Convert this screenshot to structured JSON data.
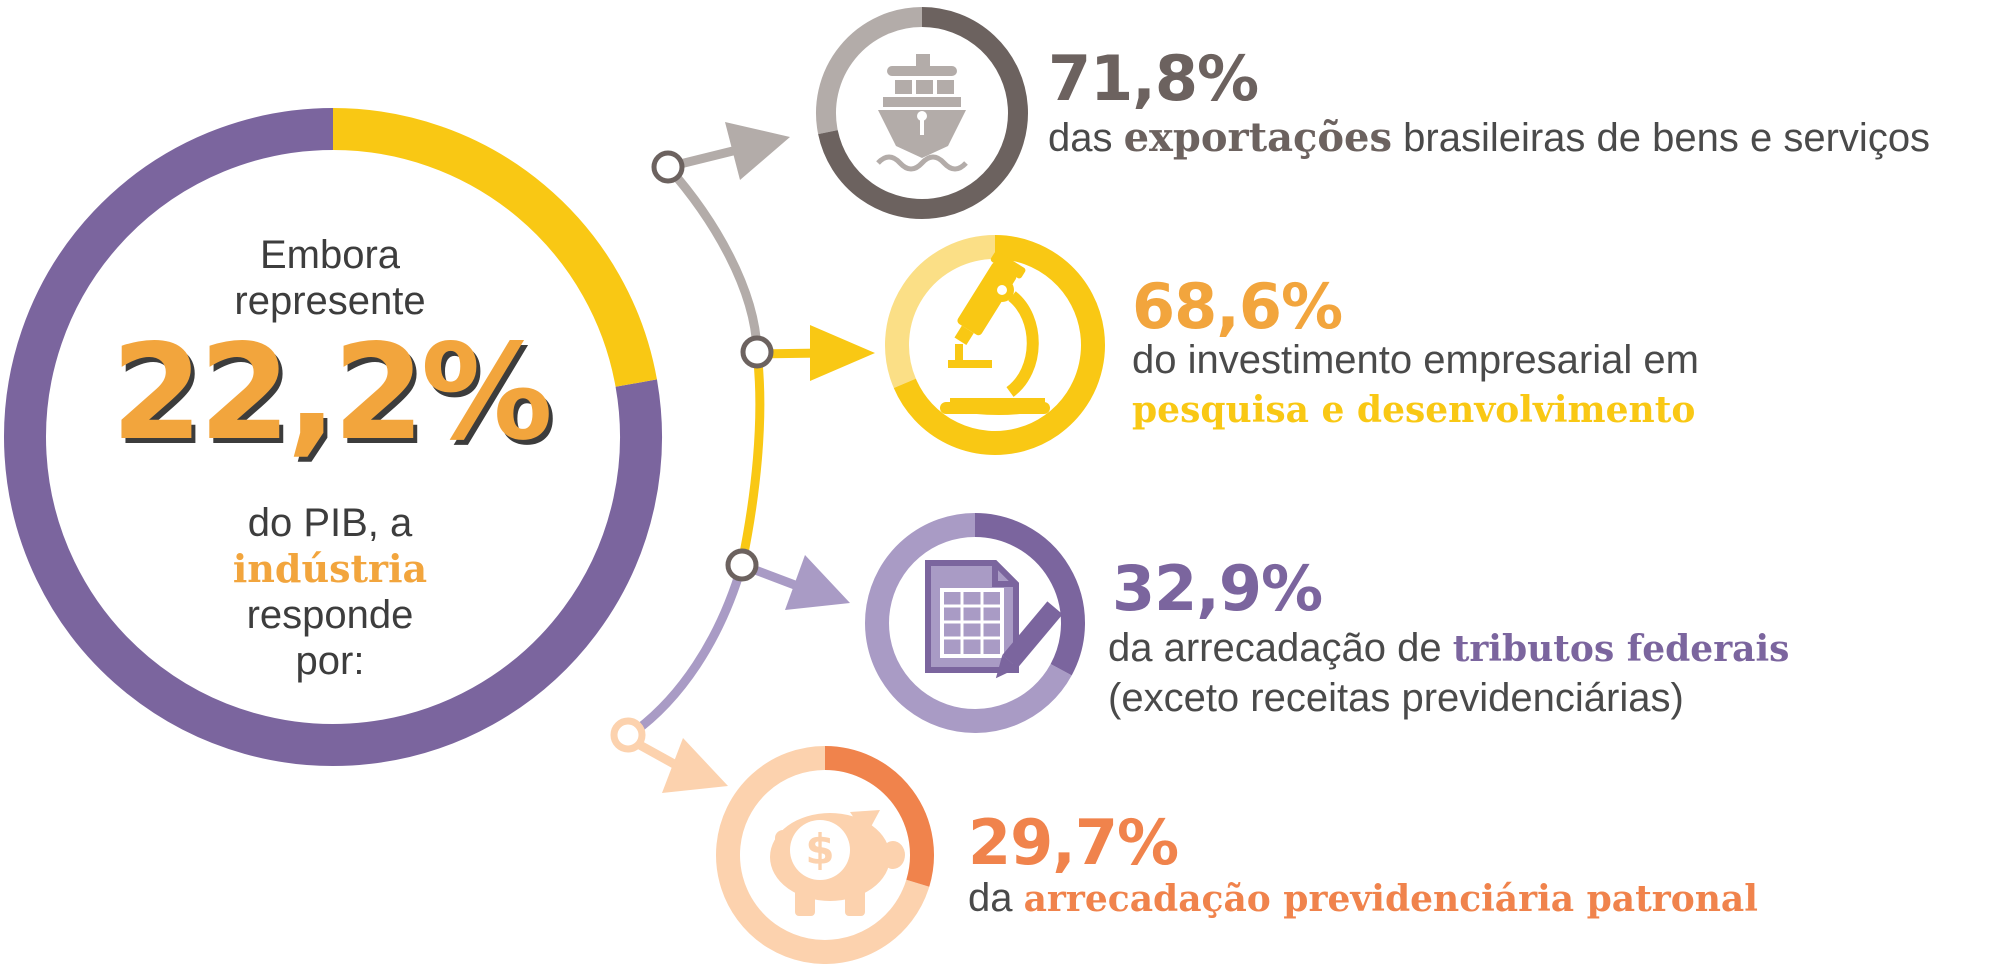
{
  "colors": {
    "purple": "#7b659e",
    "purple_light": "#a99bc5",
    "yellow": "#f9c814",
    "yellow_light": "#fbdf86",
    "gray_dark": "#6c625f",
    "gray_light": "#b3aca9",
    "orange": "#f0834c",
    "orange_light": "#fcd2ae",
    "gold": "#f2a53d"
  },
  "center": {
    "line1": "Embora",
    "line2": "represente",
    "value": "22,2%",
    "line3": "do PIB, a",
    "highlight": "indústria",
    "line4": "responde",
    "line5": "por:"
  },
  "chart_data": {
    "type": "pie",
    "rings": [
      {
        "label": "do PIB",
        "value": 22.2,
        "color": "#f9c814",
        "rest_color": "#7b659e"
      },
      {
        "label": "das exportações brasileiras de bens e serviços",
        "value": 71.8,
        "color": "#6c625f",
        "rest_color": "#b3aca9"
      },
      {
        "label": "do investimento empresarial em pesquisa e desenvolvimento",
        "value": 68.6,
        "color": "#f9c814",
        "rest_color": "#fbdf86"
      },
      {
        "label": "da arrecadação de tributos federais (exceto receitas previdenciárias)",
        "value": 32.9,
        "color": "#7b659e",
        "rest_color": "#a99bc5"
      },
      {
        "label": "da arrecadação previdenciária patronal",
        "value": 29.7,
        "color": "#f0834c",
        "rest_color": "#fcd2ae"
      }
    ]
  },
  "stats": [
    {
      "value": "71,8%",
      "desc_pre": "das ",
      "desc_emph": "exportações",
      "desc_post": " brasileiras de bens e serviços",
      "desc_line2": "",
      "icon": "ship-icon"
    },
    {
      "value": "68,6%",
      "desc_pre": "do investimento empresarial em",
      "desc_emph": "",
      "desc_post": "",
      "desc_line2": "pesquisa e desenvolvimento",
      "icon": "microscope-icon"
    },
    {
      "value": "32,9%",
      "desc_pre": "da arrecadação de ",
      "desc_emph": "tributos federais",
      "desc_post": "",
      "desc_line2": "(exceto receitas previdenciárias)",
      "icon": "document-icon"
    },
    {
      "value": "29,7%",
      "desc_pre": "da ",
      "desc_emph": "arrecadação previdenciária patronal",
      "desc_post": "",
      "desc_line2": "",
      "icon": "piggy-bank-icon"
    }
  ]
}
